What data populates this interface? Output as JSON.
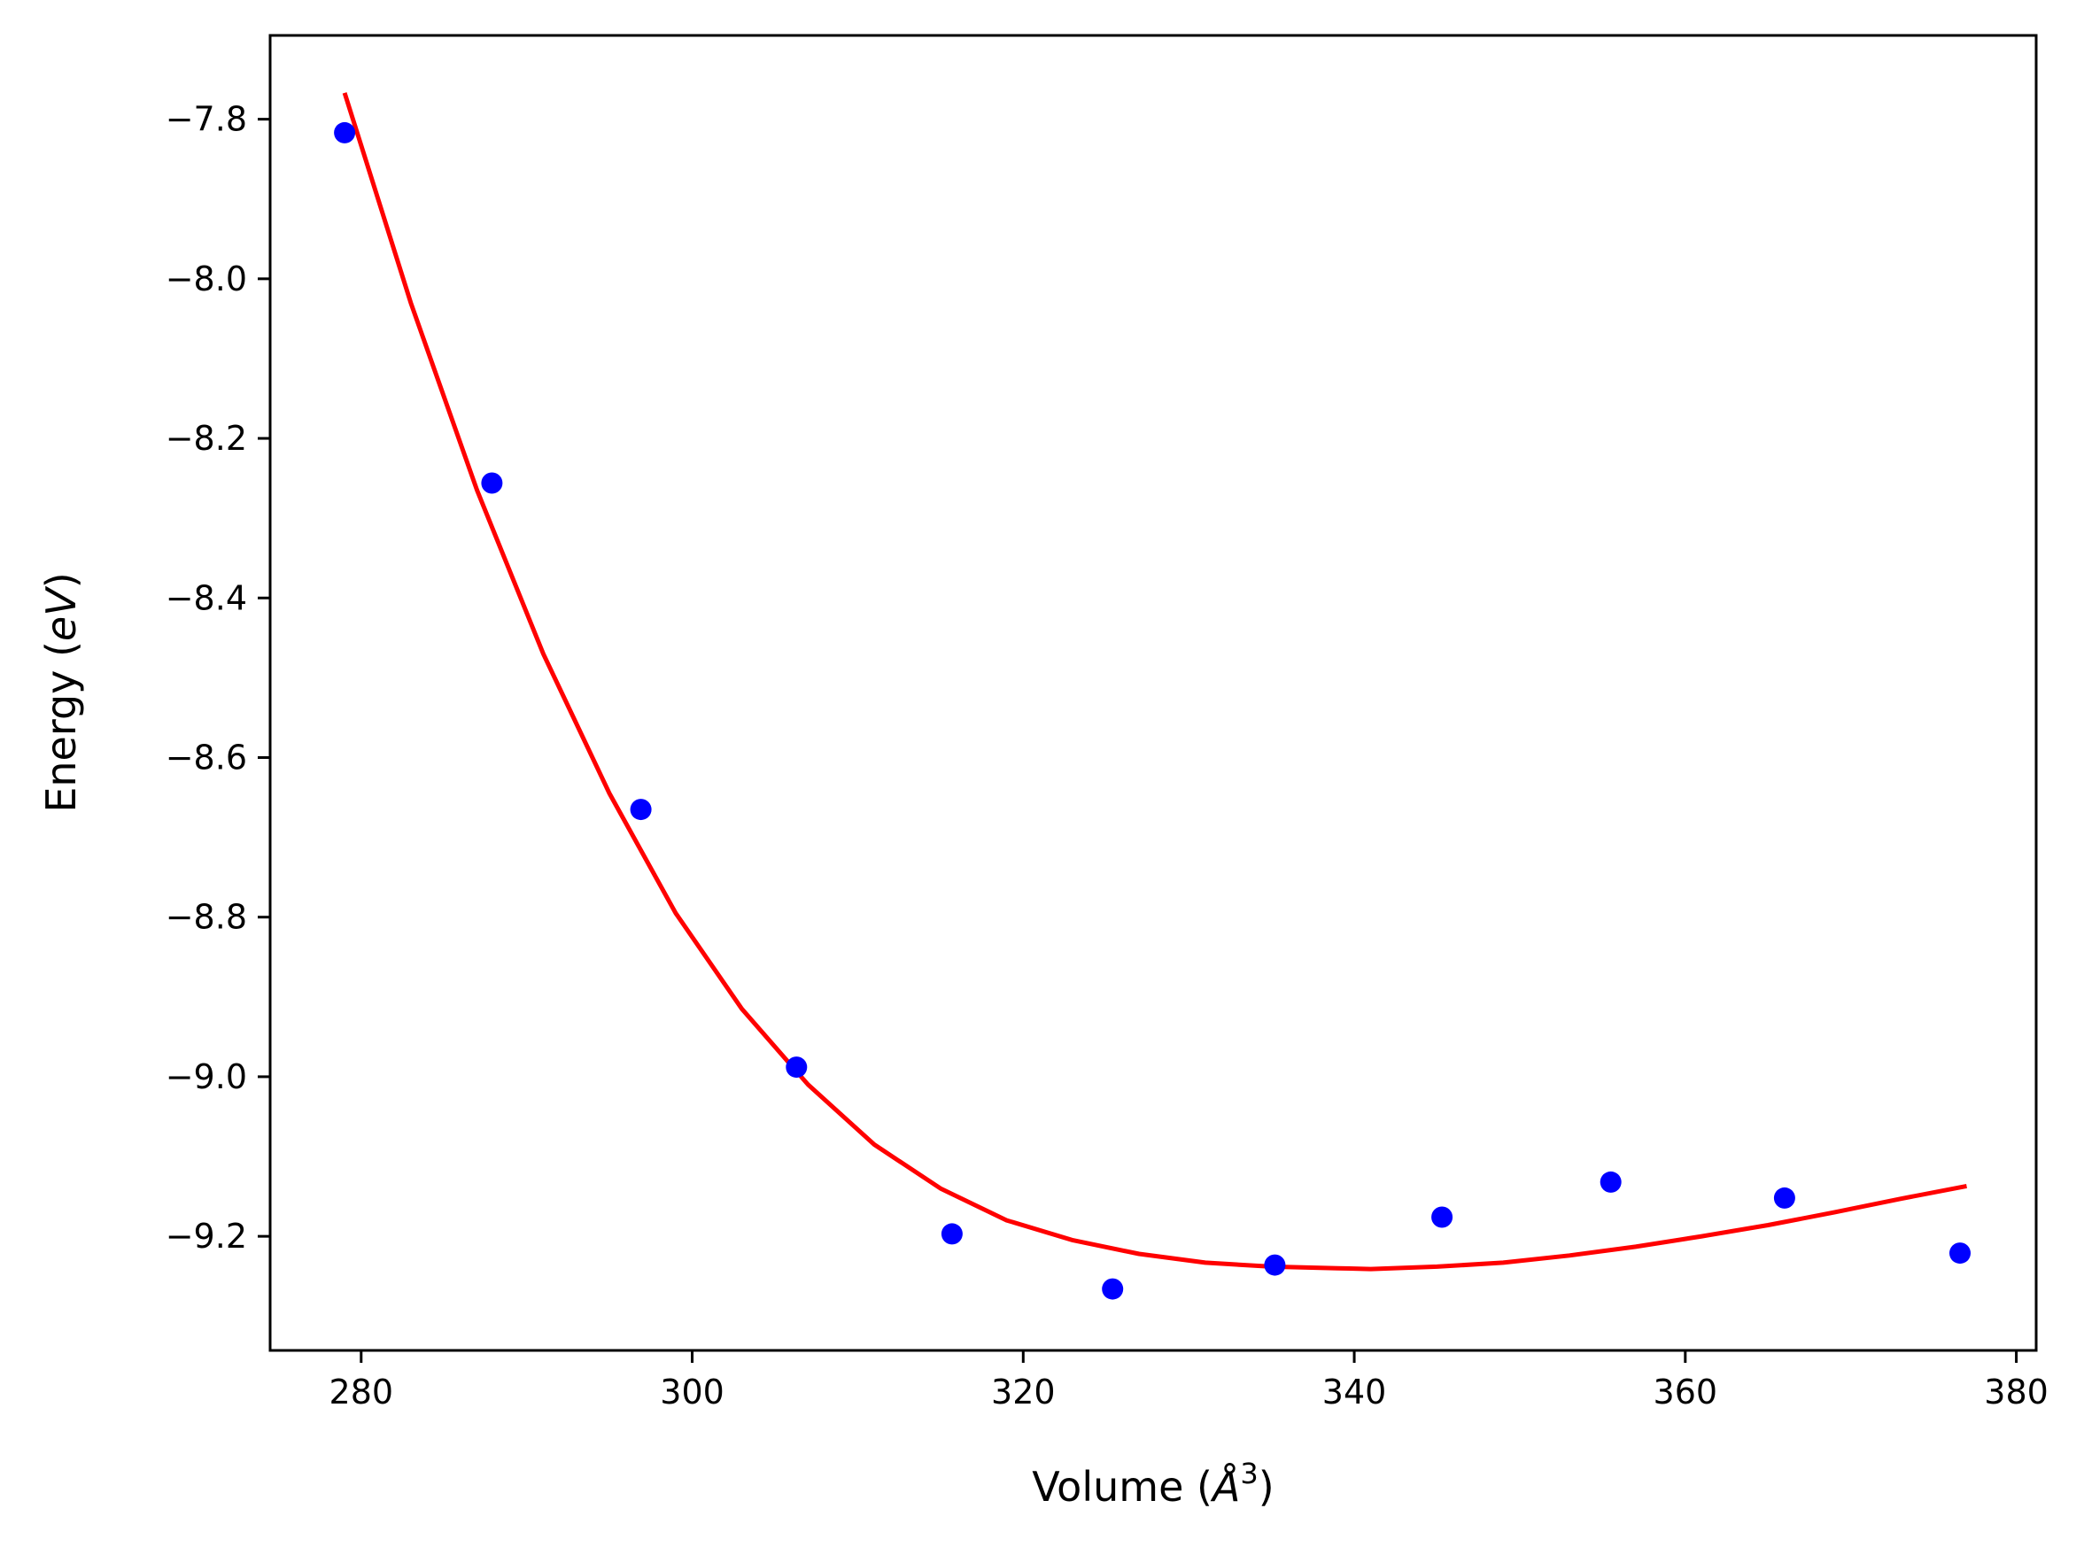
{
  "chart_data": {
    "type": "scatter",
    "title": "",
    "xlabel_text": "Volume (",
    "xlabel_unit": "Å",
    "xlabel_sup": "3",
    "xlabel_close": ")",
    "ylabel_text": "Energy (",
    "ylabel_unit": "eV",
    "ylabel_close": ")",
    "xlim": [
      274.5,
      381.2
    ],
    "ylim": [
      -9.343,
      -7.695
    ],
    "x_ticks": [
      280,
      300,
      320,
      340,
      360,
      380
    ],
    "y_ticks": [
      -7.8,
      -8.0,
      -8.2,
      -8.4,
      -8.6,
      -8.8,
      -9.0,
      -9.2
    ],
    "y_tick_labels": [
      "−7.8",
      "−8.0",
      "−8.2",
      "−8.4",
      "−8.6",
      "−8.8",
      "−9.0",
      "−9.2"
    ],
    "grid": false,
    "series": [
      {
        "kind": "points",
        "color": "#0000ff",
        "x": [
          279.0,
          287.9,
          296.9,
          306.3,
          315.7,
          325.4,
          335.2,
          345.3,
          355.5,
          366.0,
          376.6
        ],
        "y": [
          -7.817,
          -8.256,
          -8.665,
          -8.988,
          -9.197,
          -9.266,
          -9.236,
          -9.176,
          -9.132,
          -9.152,
          -9.221
        ]
      },
      {
        "kind": "fit",
        "color": "#ff0000",
        "x": [
          279.0,
          283.0,
          287.0,
          291.0,
          295.0,
          299.0,
          303.0,
          307.0,
          311.0,
          315.0,
          319.0,
          323.0,
          327.0,
          331.0,
          335.0,
          339.0,
          341.0,
          345.0,
          349.0,
          353.0,
          357.0,
          361.0,
          365.0,
          369.0,
          373.0,
          377.0
        ],
        "y": [
          -7.767,
          -8.03,
          -8.265,
          -8.47,
          -8.645,
          -8.795,
          -8.915,
          -9.01,
          -9.085,
          -9.14,
          -9.18,
          -9.205,
          -9.222,
          -9.233,
          -9.238,
          -9.24,
          -9.241,
          -9.238,
          -9.233,
          -9.224,
          -9.213,
          -9.2,
          -9.186,
          -9.17,
          -9.153,
          -9.137
        ]
      }
    ]
  }
}
